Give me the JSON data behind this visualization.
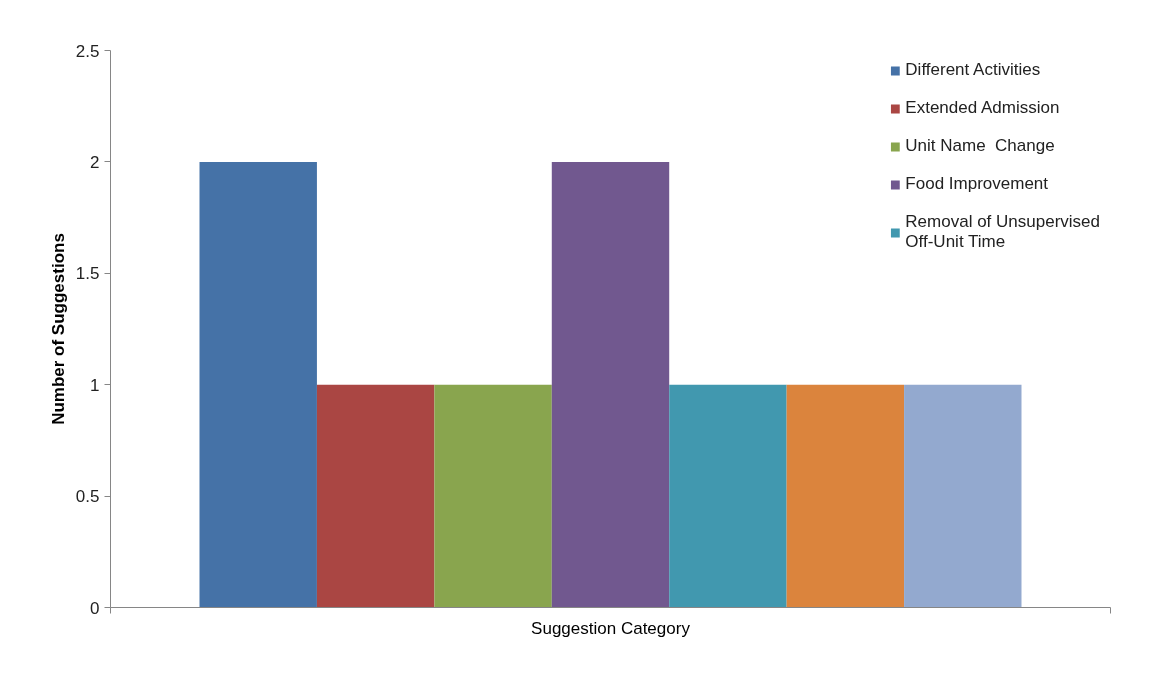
{
  "chart_data": {
    "type": "bar",
    "xlabel": "Suggestion Category",
    "ylabel": "Number of Suggestions",
    "categories": [
      null
    ],
    "series": [
      {
        "name": "Different Activities",
        "color": "#4572a7",
        "values": [
          2
        ]
      },
      {
        "name": "Extended Admission",
        "color": "#aa4643",
        "values": [
          1
        ]
      },
      {
        "name": "Unit Name  Change",
        "color": "#89a54e",
        "values": [
          1
        ]
      },
      {
        "name": "Food Improvement",
        "color": "#71588f",
        "values": [
          2
        ]
      },
      {
        "name": "Removal of Unsupervised Off-Unit Time",
        "color": "#4198af",
        "values": [
          1
        ]
      },
      {
        "color": "#db843d",
        "values": [
          1
        ]
      },
      {
        "color": "#93a9cf",
        "values": [
          1
        ]
      }
    ],
    "ylim": [
      0,
      2.5
    ],
    "yticks": [
      0,
      0.5,
      1,
      1.5,
      2,
      2.5
    ],
    "legend": "top right"
  }
}
